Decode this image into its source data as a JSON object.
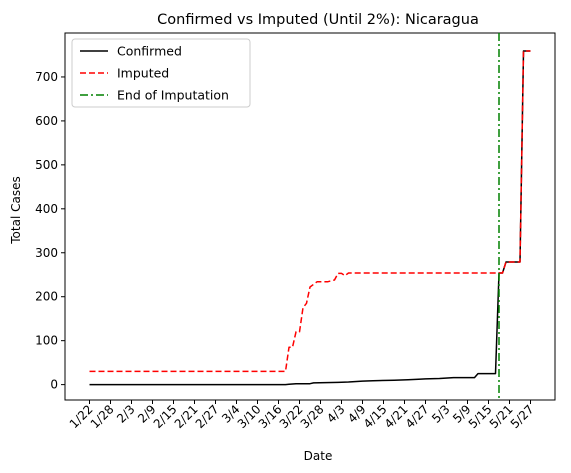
{
  "chart_data": {
    "type": "line",
    "title": "Confirmed vs Imputed (Until 2%): Nicaragua",
    "xlabel": "Date",
    "ylabel": "Total Cases",
    "ylim": [
      -35,
      800
    ],
    "yticks": [
      0,
      100,
      200,
      300,
      400,
      500,
      600,
      700
    ],
    "xticks": [
      "1/22",
      "1/28",
      "2/3",
      "2/9",
      "2/15",
      "2/21",
      "2/27",
      "3/4",
      "3/10",
      "3/16",
      "3/22",
      "3/28",
      "4/3",
      "4/9",
      "4/15",
      "4/21",
      "4/27",
      "5/3",
      "5/9",
      "5/15",
      "5/21",
      "5/27"
    ],
    "grid": false,
    "legend_position": "top-left",
    "series": [
      {
        "name": "Confirmed",
        "color": "#000000",
        "style": "solid",
        "points": [
          [
            "1/22",
            0
          ],
          [
            "3/18",
            0
          ],
          [
            "3/19",
            1
          ],
          [
            "3/21",
            2
          ],
          [
            "3/25",
            2
          ],
          [
            "3/26",
            4
          ],
          [
            "4/2",
            5
          ],
          [
            "4/5",
            6
          ],
          [
            "4/9",
            8
          ],
          [
            "4/12",
            9
          ],
          [
            "4/18",
            10
          ],
          [
            "4/22",
            11
          ],
          [
            "4/25",
            12
          ],
          [
            "4/27",
            13
          ],
          [
            "5/1",
            14
          ],
          [
            "5/5",
            16
          ],
          [
            "5/11",
            16
          ],
          [
            "5/12",
            25
          ],
          [
            "5/17",
            25
          ],
          [
            "5/18",
            254
          ],
          [
            "5/19",
            254
          ],
          [
            "5/20",
            279
          ],
          [
            "5/24",
            279
          ],
          [
            "5/25",
            759
          ],
          [
            "5/27",
            759
          ]
        ]
      },
      {
        "name": "Imputed",
        "color": "#ff0000",
        "style": "dashed",
        "points": [
          [
            "1/22",
            30
          ],
          [
            "3/18",
            30
          ],
          [
            "3/19",
            85
          ],
          [
            "3/20",
            85
          ],
          [
            "3/21",
            120
          ],
          [
            "3/22",
            120
          ],
          [
            "3/23",
            175
          ],
          [
            "3/24",
            185
          ],
          [
            "3/25",
            222
          ],
          [
            "3/26",
            228
          ],
          [
            "3/27",
            234
          ],
          [
            "3/30",
            234
          ],
          [
            "4/1",
            238
          ],
          [
            "4/2",
            253
          ],
          [
            "4/3",
            253
          ],
          [
            "4/4",
            248
          ],
          [
            "4/5",
            254
          ],
          [
            "5/17",
            254
          ],
          [
            "5/18",
            254
          ],
          [
            "5/19",
            254
          ],
          [
            "5/20",
            279
          ],
          [
            "5/24",
            279
          ],
          [
            "5/25",
            759
          ],
          [
            "5/27",
            759
          ]
        ]
      }
    ],
    "annotations": [
      {
        "name": "End of Imputation",
        "type": "vline",
        "x": "5/18",
        "color": "#008000",
        "style": "dashdot"
      }
    ]
  }
}
